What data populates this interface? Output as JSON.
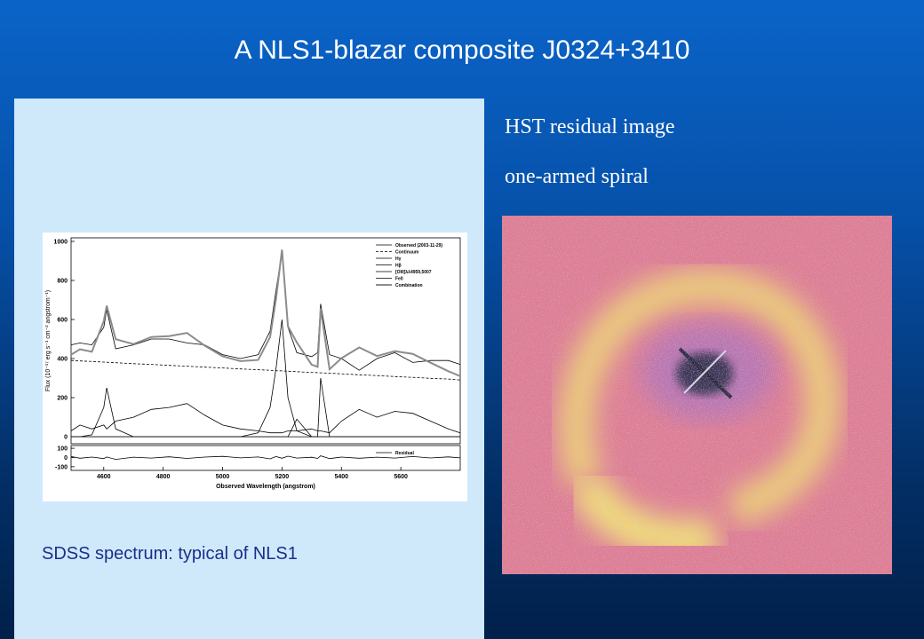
{
  "title": "A NLS1-blazar composite J0324+3410",
  "caption": "SDSS spectrum:  typical of NLS1",
  "image_panel": {
    "heading": "HST residual image",
    "subheading": "one-armed spiral"
  },
  "chart_data": [
    {
      "type": "line",
      "ylabel": "Flux (10⁻¹⁷ erg s⁻¹ cm⁻² angstrom⁻¹)",
      "x": [
        4490,
        4520,
        4560,
        4600,
        4610,
        4640,
        4700,
        4760,
        4820,
        4880,
        4940,
        5000,
        5060,
        5120,
        5160,
        5180,
        5200,
        5220,
        5250,
        5300,
        5320,
        5330,
        5360,
        5400,
        5460,
        5520,
        5580,
        5640,
        5700,
        5760,
        5800
      ],
      "xlim": [
        4490,
        5800
      ],
      "ylim": [
        -36,
        1018
      ],
      "yticks": [
        0,
        200,
        400,
        600,
        800,
        1000
      ],
      "legend": "upper right",
      "series": [
        {
          "name": "Observed (2003-11-29)",
          "color": "#000000",
          "style": "solid",
          "values": [
            470,
            480,
            470,
            560,
            650,
            450,
            470,
            500,
            500,
            480,
            470,
            420,
            400,
            420,
            540,
            750,
            950,
            560,
            430,
            410,
            430,
            680,
            420,
            400,
            340,
            400,
            430,
            380,
            390,
            390,
            370
          ]
        },
        {
          "name": "Continuum",
          "color": "#000000",
          "style": "dashed",
          "values": [
            390,
            388,
            385,
            382,
            381,
            379,
            374,
            370,
            365,
            361,
            356,
            352,
            347,
            343,
            340,
            338,
            337,
            335,
            333,
            329,
            328,
            327,
            325,
            322,
            317,
            313,
            308,
            304,
            299,
            295,
            290
          ]
        },
        {
          "name": "Hγ",
          "color": "#000000",
          "style": "solid",
          "values": [
            0,
            0,
            10,
            150,
            250,
            40,
            0,
            0,
            0,
            0,
            0,
            0,
            0,
            0,
            0,
            0,
            0,
            0,
            0,
            0,
            0,
            0,
            0,
            0,
            0,
            0,
            0,
            0,
            0,
            0,
            0
          ]
        },
        {
          "name": "Hβ",
          "color": "#000000",
          "style": "solid",
          "values": [
            0,
            0,
            0,
            0,
            0,
            0,
            0,
            0,
            0,
            0,
            0,
            0,
            0,
            20,
            150,
            350,
            600,
            200,
            30,
            0,
            0,
            0,
            0,
            0,
            0,
            0,
            0,
            0,
            0,
            0,
            0
          ]
        },
        {
          "name": "[OIII]λλ4959,5007",
          "color": "#000000",
          "style": "solid",
          "values": [
            0,
            0,
            0,
            0,
            0,
            0,
            0,
            0,
            0,
            0,
            0,
            0,
            0,
            0,
            0,
            0,
            0,
            0,
            90,
            0,
            0,
            300,
            0,
            0,
            0,
            0,
            0,
            0,
            0,
            0,
            0
          ]
        },
        {
          "name": "FeII",
          "color": "#000000",
          "style": "solid",
          "values": [
            30,
            60,
            40,
            60,
            40,
            80,
            100,
            140,
            150,
            170,
            110,
            60,
            40,
            30,
            20,
            20,
            20,
            30,
            30,
            40,
            30,
            30,
            20,
            80,
            140,
            100,
            130,
            120,
            80,
            40,
            20
          ]
        },
        {
          "name": "Combination",
          "color": "#8c8c8c",
          "style": "thick",
          "values": [
            420,
            448,
            435,
            592,
            671,
            499,
            474,
            510,
            515,
            531,
            466,
            412,
            387,
            393,
            510,
            708,
            957,
            565,
            483,
            369,
            358,
            657,
            345,
            402,
            457,
            413,
            438,
            424,
            379,
            335,
            310
          ]
        }
      ]
    },
    {
      "type": "line",
      "xlabel": "Observed Wavelength (angstrom)",
      "x": [
        4490,
        4520,
        4560,
        4600,
        4610,
        4640,
        4700,
        4760,
        4820,
        4880,
        4940,
        5000,
        5060,
        5120,
        5160,
        5180,
        5200,
        5220,
        5250,
        5300,
        5320,
        5330,
        5360,
        5400,
        5460,
        5520,
        5580,
        5640,
        5700,
        5760,
        5800
      ],
      "xlim": [
        4490,
        5800
      ],
      "xticks": [
        4600,
        4800,
        5000,
        5200,
        5400,
        5600
      ],
      "ylim": [
        -140,
        130
      ],
      "yticks": [
        -100,
        0,
        100
      ],
      "legend": "upper right",
      "series": [
        {
          "name": "Residual",
          "color": "#000000",
          "style": "solid",
          "values": [
            10,
            -8,
            5,
            -12,
            6,
            -20,
            4,
            -6,
            8,
            -10,
            5,
            12,
            -4,
            6,
            -15,
            10,
            -8,
            14,
            -6,
            3,
            -10,
            18,
            -12,
            5,
            -8,
            4,
            -6,
            10,
            -5,
            7,
            -4
          ]
        }
      ]
    }
  ]
}
